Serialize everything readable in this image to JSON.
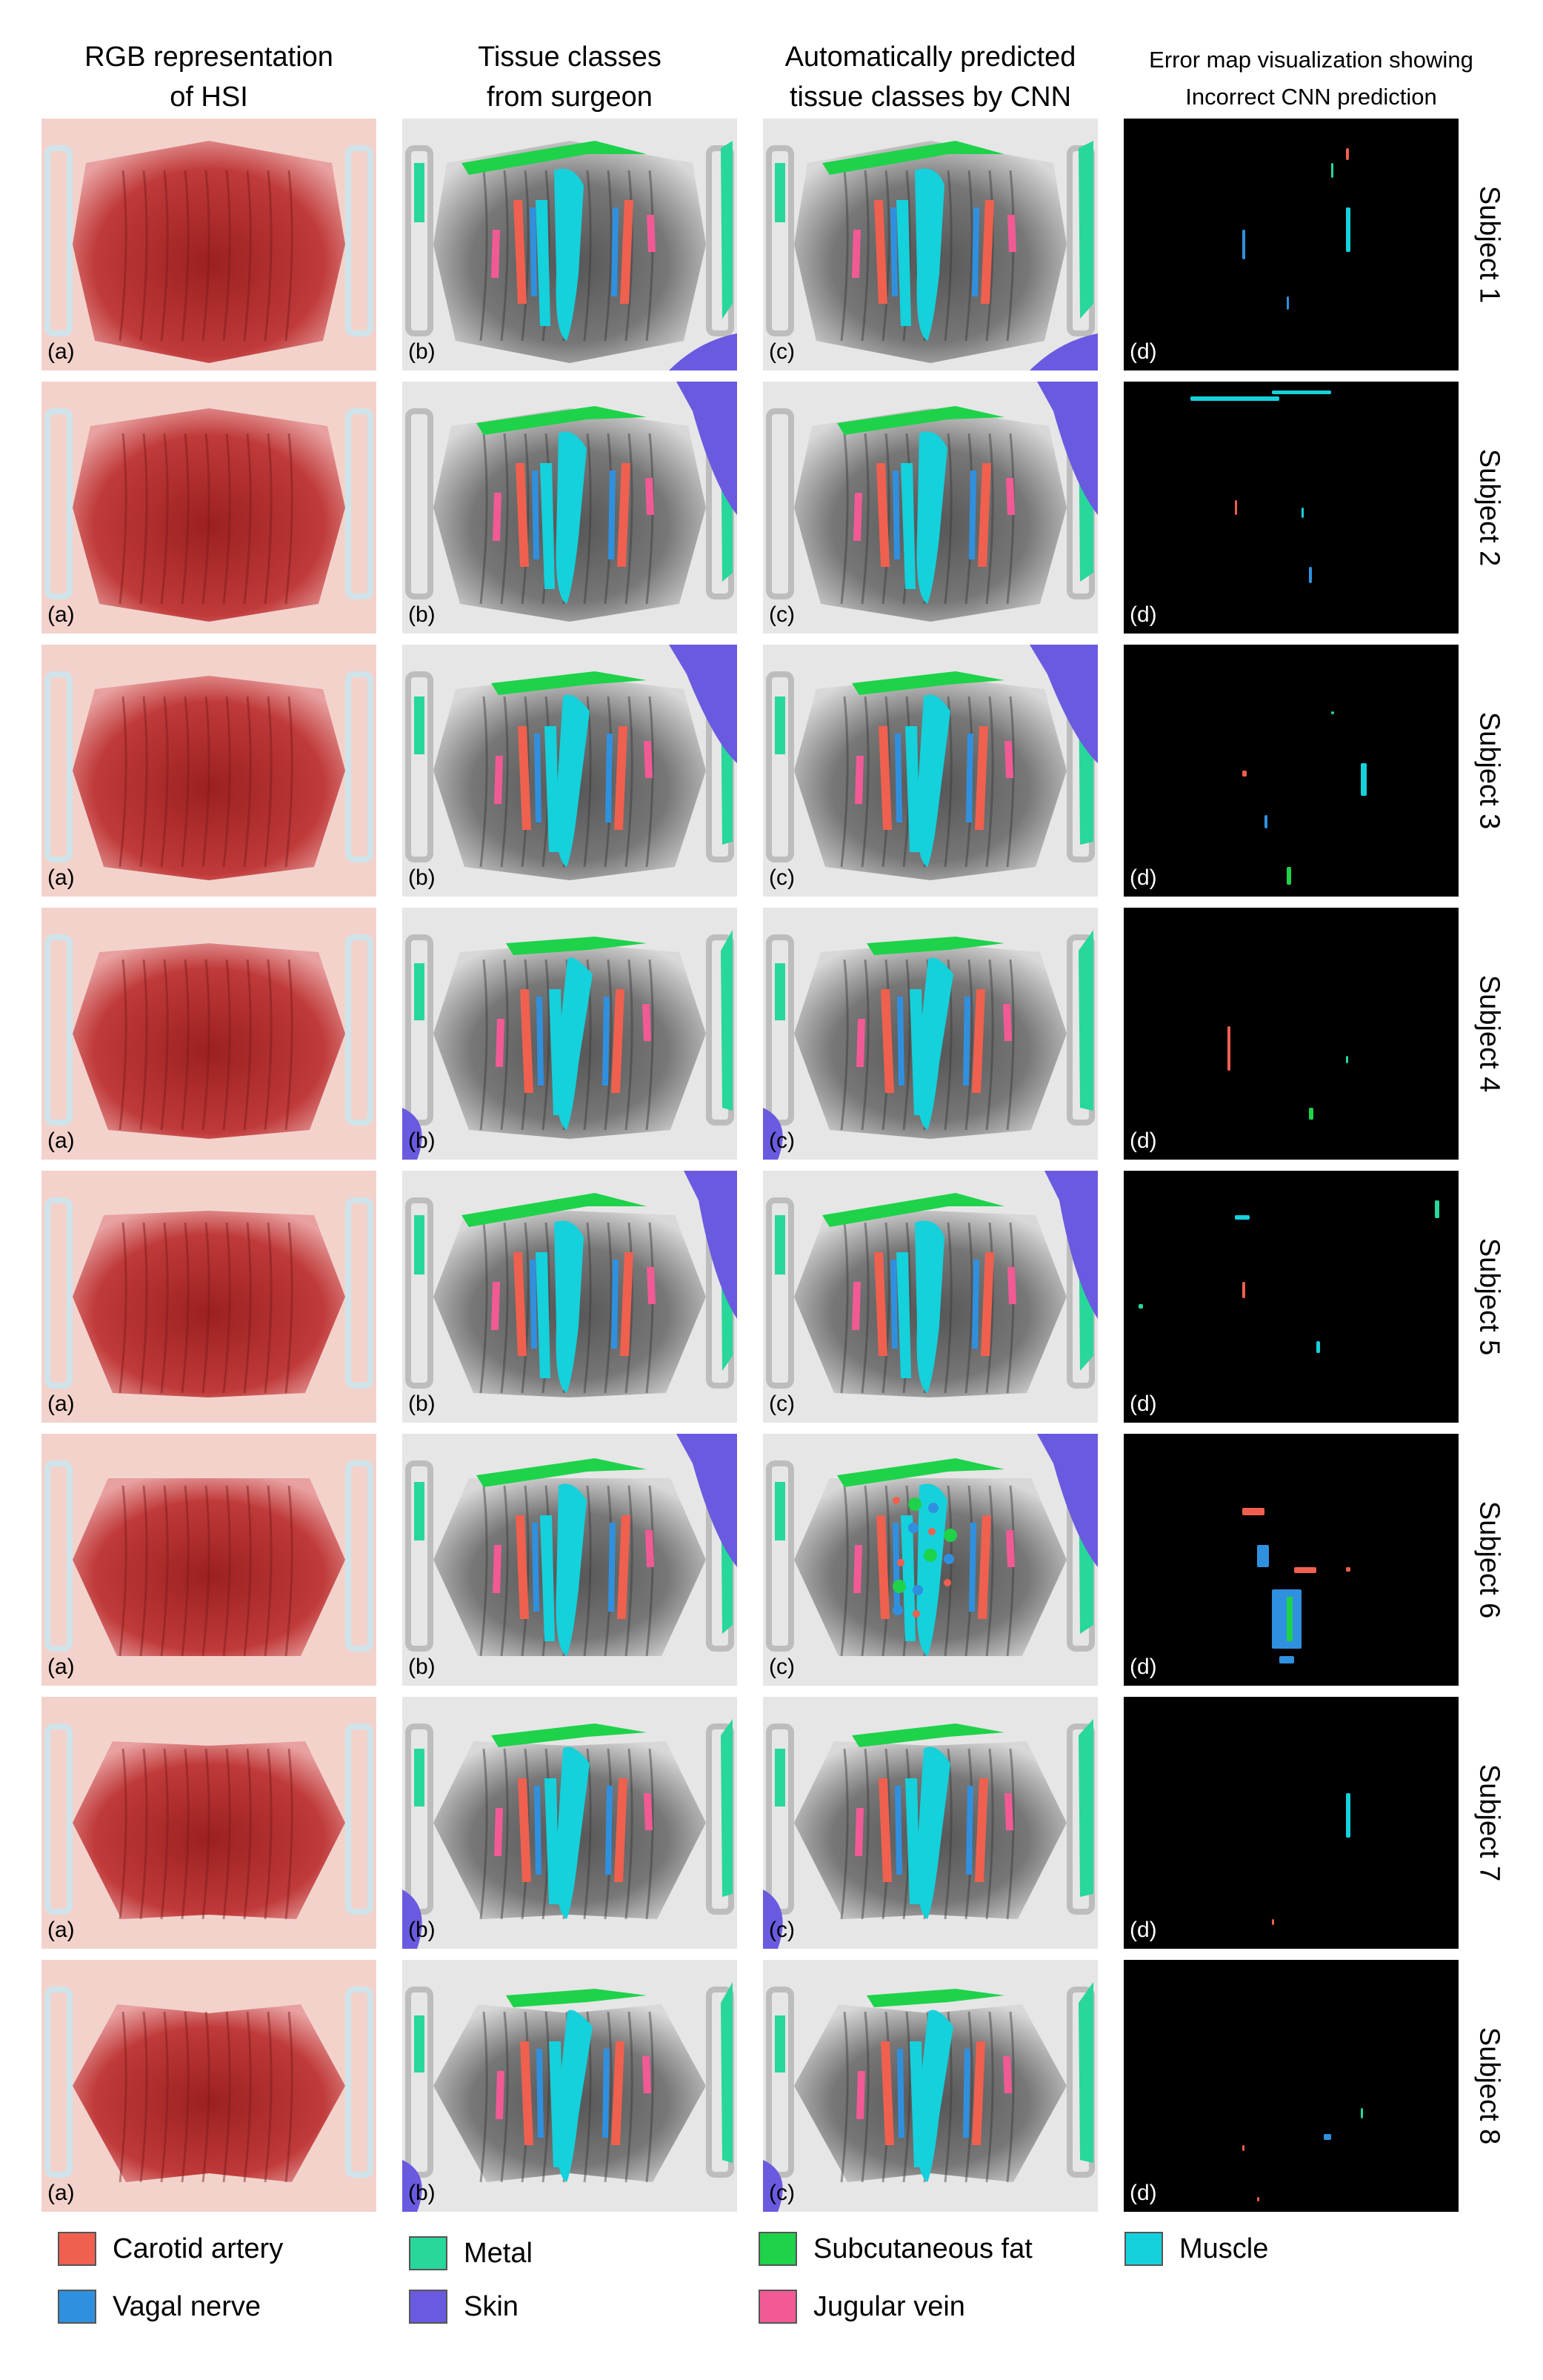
{
  "headers": {
    "col1": [
      "RGB representation",
      "of HSI"
    ],
    "col2": [
      "Tissue classes",
      "from surgeon"
    ],
    "col3": [
      "Automatically predicted",
      "tissue classes by CNN"
    ],
    "col4": [
      "Error map visualization showing",
      "Incorrect CNN prediction"
    ]
  },
  "panel_labels": [
    "(a)",
    "(b)",
    "(c)",
    "(d)"
  ],
  "subjects": [
    "Subject 1",
    "Subject 2",
    "Subject 3",
    "Subject 4",
    "Subject 5",
    "Subject 6",
    "Subject 7",
    "Subject 8"
  ],
  "legend": [
    {
      "label": "Carotid artery",
      "color": "#f0604f"
    },
    {
      "label": "Metal",
      "color": "#28d79a"
    },
    {
      "label": "Subcutaneous fat",
      "color": "#1ed24a"
    },
    {
      "label": "Muscle",
      "color": "#14d1dc"
    },
    {
      "label": "Vagal nerve",
      "color": "#3090e0"
    },
    {
      "label": "Skin",
      "color": "#6a5ae0"
    },
    {
      "label": "Jugular vein",
      "color": "#f25a96"
    }
  ]
}
